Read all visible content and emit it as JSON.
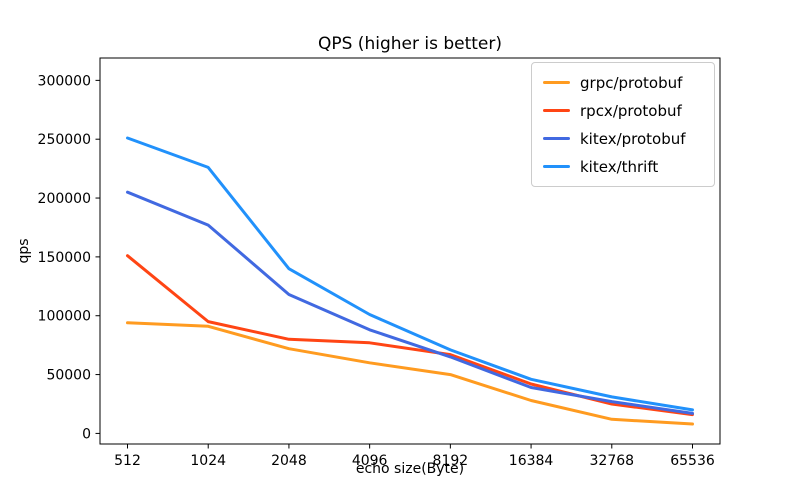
{
  "chart_data": {
    "type": "line",
    "title": "QPS (higher is better)",
    "xlabel": "echo size(Byte)",
    "ylabel": "qps",
    "x_categories": [
      "512",
      "1024",
      "2048",
      "4096",
      "8192",
      "16384",
      "32768",
      "65536"
    ],
    "y_ticks": [
      0,
      50000,
      100000,
      150000,
      200000,
      250000,
      300000
    ],
    "ylim": [
      -9000,
      319000
    ],
    "grid": false,
    "legend_position": "upper right",
    "series": [
      {
        "name": "grpc/protobuf",
        "color": "#ff9b20",
        "values": [
          94000,
          91000,
          72000,
          60000,
          50000,
          28000,
          12000,
          8000
        ]
      },
      {
        "name": "rpcx/protobuf",
        "color": "#ff4514",
        "values": [
          151000,
          95000,
          80000,
          77000,
          67000,
          42000,
          25000,
          16000
        ]
      },
      {
        "name": "kitex/protobuf",
        "color": "#4169e1",
        "values": [
          205000,
          177000,
          118000,
          88000,
          65000,
          39000,
          27000,
          17000
        ]
      },
      {
        "name": "kitex/thrift",
        "color": "#2191fb",
        "values": [
          251000,
          226000,
          140000,
          101000,
          71000,
          46000,
          31000,
          20000
        ]
      }
    ]
  }
}
